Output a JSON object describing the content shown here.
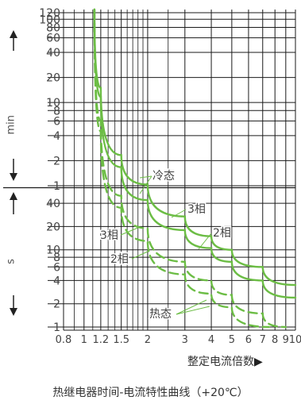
{
  "chart_data": {
    "type": "line",
    "title": "热继电器时间-电流特性曲线（+20℃）",
    "xlabel": "整定电流倍数",
    "x_scale": "log",
    "xlim": [
      0.8,
      10
    ],
    "x_ticks": [
      0.8,
      1,
      1.2,
      1.5,
      2,
      3,
      4,
      5,
      6,
      7,
      8,
      9,
      10
    ],
    "x_tick_labels": [
      "0.8",
      "1",
      "1.2",
      "1.5",
      "2",
      "3",
      "4",
      "5",
      "6",
      "7",
      "8",
      "9",
      "10"
    ],
    "y_scale": "log",
    "y_sections": [
      {
        "unit": "min",
        "ticks": [
          1,
          2,
          4,
          6,
          8,
          10,
          20,
          40,
          60,
          80,
          100,
          120
        ]
      },
      {
        "unit": "s",
        "ticks": [
          1,
          2,
          4,
          6,
          8,
          10,
          20,
          40
        ]
      }
    ],
    "grid": true,
    "series": [
      {
        "name": "3相",
        "group": "冷态",
        "style": "solid",
        "points": [
          [
            1.12,
            7200
          ],
          [
            1.2,
            900
          ],
          [
            1.5,
            140
          ],
          [
            2,
            62
          ],
          [
            3,
            27
          ],
          [
            4,
            15
          ],
          [
            5,
            10
          ],
          [
            7,
            6
          ],
          [
            10,
            3.5
          ]
        ]
      },
      {
        "name": "2相",
        "group": "冷态",
        "style": "solid",
        "points": [
          [
            1.12,
            7200
          ],
          [
            1.2,
            700
          ],
          [
            1.5,
            100
          ],
          [
            2,
            44
          ],
          [
            3,
            18
          ],
          [
            4,
            10.5
          ],
          [
            5,
            7
          ],
          [
            7,
            4
          ],
          [
            10,
            2.4
          ]
        ]
      },
      {
        "name": "3相",
        "group": "热态",
        "style": "dashed",
        "points": [
          [
            1.12,
            7200
          ],
          [
            1.2,
            360
          ],
          [
            1.5,
            50
          ],
          [
            2,
            19
          ],
          [
            3,
            7
          ],
          [
            4,
            4
          ],
          [
            5,
            2.6
          ],
          [
            7,
            1.5
          ],
          [
            9,
            1
          ]
        ]
      },
      {
        "name": "2相",
        "group": "热态",
        "style": "dashed",
        "points": [
          [
            1.12,
            7200
          ],
          [
            1.2,
            270
          ],
          [
            1.5,
            35
          ],
          [
            2,
            13
          ],
          [
            3,
            4.8
          ],
          [
            4,
            2.7
          ],
          [
            5,
            1.8
          ],
          [
            7.5,
            1
          ]
        ]
      }
    ],
    "annotations": [
      "冷态",
      "3相",
      "2相",
      "3相",
      "2相",
      "热态"
    ],
    "colors": {
      "curve": "#6cbd45",
      "grid": "#1a1a1a",
      "axis_text": "#444444"
    }
  },
  "axis_units": {
    "upper": "min",
    "lower": "s"
  }
}
